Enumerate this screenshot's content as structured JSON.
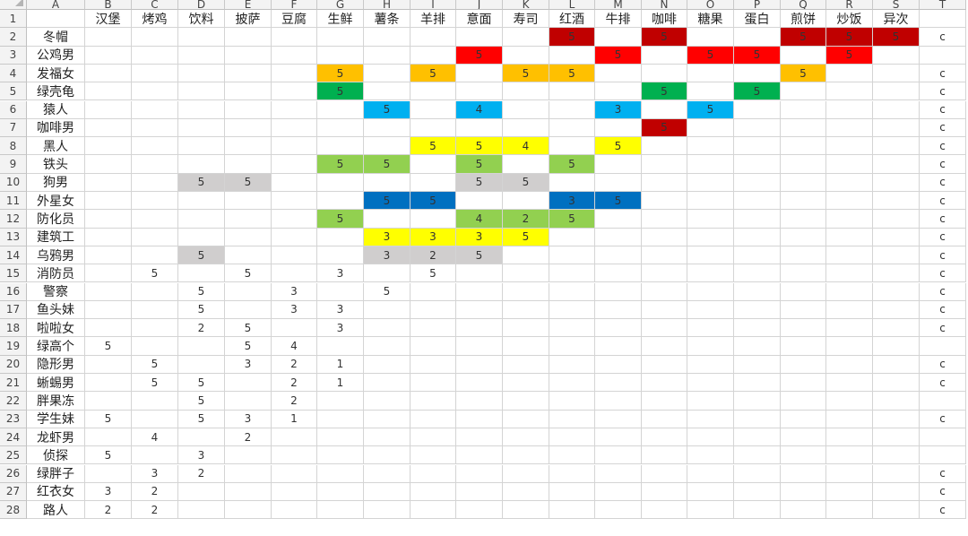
{
  "columns": [
    "A",
    "B",
    "C",
    "D",
    "E",
    "F",
    "G",
    "H",
    "I",
    "J",
    "K",
    "L",
    "M",
    "N",
    "O",
    "P",
    "Q",
    "R",
    "S",
    "T"
  ],
  "header": [
    "",
    "汉堡",
    "烤鸡",
    "饮料",
    "披萨",
    "豆腐",
    "生鲜",
    "薯条",
    "羊排",
    "意面",
    "寿司",
    "红酒",
    "牛排",
    "咖啡",
    "糖果",
    "蛋白",
    "煎饼",
    "炒饭",
    "异次",
    ""
  ],
  "palette": {
    "R": "#c00000",
    "r": "#ff0000",
    "O": "#ffc000",
    "G": "#00b050",
    "B": "#00b0f0",
    "Y": "#ffff00",
    "L": "#92d050",
    "S": "#d0cece",
    "N": "#0070c0"
  },
  "rows": [
    {
      "n": 2,
      "name": "冬帽",
      "values": [
        "",
        "",
        "",
        "",
        "",
        "",
        "",
        "",
        "",
        "",
        "5",
        "",
        "5",
        "",
        "",
        "5",
        "5",
        "5",
        "c"
      ],
      "fills": [
        "",
        "",
        "",
        "",
        "",
        "",
        "",
        "",
        "",
        "",
        "R",
        "",
        "R",
        "",
        "",
        "R",
        "R",
        "R",
        ""
      ]
    },
    {
      "n": 3,
      "name": "公鸡男",
      "values": [
        "",
        "",
        "",
        "",
        "",
        "",
        "",
        "",
        "5",
        "",
        "",
        "5",
        "",
        "5",
        "5",
        "",
        "5",
        "",
        ""
      ],
      "fills": [
        "",
        "",
        "",
        "",
        "",
        "",
        "",
        "",
        "r",
        "",
        "",
        "r",
        "",
        "r",
        "r",
        "",
        "r",
        "",
        ""
      ]
    },
    {
      "n": 4,
      "name": "发福女",
      "values": [
        "",
        "",
        "",
        "",
        "",
        "5",
        "",
        "5",
        "",
        "5",
        "5",
        "",
        "",
        "",
        "",
        "5",
        "",
        "",
        "c"
      ],
      "fills": [
        "",
        "",
        "",
        "",
        "",
        "O",
        "",
        "O",
        "",
        "O",
        "O",
        "",
        "",
        "",
        "",
        "O",
        "",
        "",
        ""
      ]
    },
    {
      "n": 5,
      "name": "绿壳龟",
      "values": [
        "",
        "",
        "",
        "",
        "",
        "5",
        "",
        "",
        "",
        "",
        "",
        "",
        "5",
        "",
        "5",
        "",
        "",
        "",
        "c"
      ],
      "fills": [
        "",
        "",
        "",
        "",
        "",
        "G",
        "",
        "",
        "",
        "",
        "",
        "",
        "G",
        "",
        "G",
        "",
        "",
        "",
        ""
      ]
    },
    {
      "n": 6,
      "name": "猿人",
      "values": [
        "",
        "",
        "",
        "",
        "",
        "",
        "5",
        "",
        "4",
        "",
        "",
        "3",
        "",
        "5",
        "",
        "",
        "",
        "",
        "c"
      ],
      "fills": [
        "",
        "",
        "",
        "",
        "",
        "",
        "B",
        "",
        "B",
        "",
        "",
        "B",
        "",
        "B",
        "",
        "",
        "",
        "",
        ""
      ]
    },
    {
      "n": 7,
      "name": "咖啡男",
      "values": [
        "",
        "",
        "",
        "",
        "",
        "",
        "",
        "",
        "",
        "",
        "",
        "",
        "5",
        "",
        "",
        "",
        "",
        "",
        "c"
      ],
      "fills": [
        "",
        "",
        "",
        "",
        "",
        "",
        "",
        "",
        "",
        "",
        "",
        "",
        "R",
        "",
        "",
        "",
        "",
        "",
        ""
      ]
    },
    {
      "n": 8,
      "name": "黑人",
      "values": [
        "",
        "",
        "",
        "",
        "",
        "",
        "",
        "5",
        "5",
        "4",
        "",
        "5",
        "",
        "",
        "",
        "",
        "",
        "",
        "c"
      ],
      "fills": [
        "",
        "",
        "",
        "",
        "",
        "",
        "",
        "Y",
        "Y",
        "Y",
        "",
        "Y",
        "",
        "",
        "",
        "",
        "",
        "",
        ""
      ]
    },
    {
      "n": 9,
      "name": "铁头",
      "values": [
        "",
        "",
        "",
        "",
        "",
        "5",
        "5",
        "",
        "5",
        "",
        "5",
        "",
        "",
        "",
        "",
        "",
        "",
        "",
        "c"
      ],
      "fills": [
        "",
        "",
        "",
        "",
        "",
        "L",
        "L",
        "",
        "L",
        "",
        "L",
        "",
        "",
        "",
        "",
        "",
        "",
        "",
        ""
      ]
    },
    {
      "n": 10,
      "name": "狗男",
      "values": [
        "",
        "",
        "5",
        "5",
        "",
        "",
        "",
        "",
        "5",
        "5",
        "",
        "",
        "",
        "",
        "",
        "",
        "",
        "",
        "c"
      ],
      "fills": [
        "",
        "",
        "S",
        "S",
        "",
        "",
        "",
        "",
        "S",
        "S",
        "",
        "",
        "",
        "",
        "",
        "",
        "",
        "",
        ""
      ]
    },
    {
      "n": 11,
      "name": "外星女",
      "values": [
        "",
        "",
        "",
        "",
        "",
        "",
        "5",
        "5",
        "",
        "",
        "3",
        "5",
        "",
        "",
        "",
        "",
        "",
        "",
        "c"
      ],
      "fills": [
        "",
        "",
        "",
        "",
        "",
        "",
        "N",
        "N",
        "",
        "",
        "N",
        "N",
        "",
        "",
        "",
        "",
        "",
        "",
        ""
      ]
    },
    {
      "n": 12,
      "name": "防化员",
      "values": [
        "",
        "",
        "",
        "",
        "",
        "5",
        "",
        "",
        "4",
        "2",
        "5",
        "",
        "",
        "",
        "",
        "",
        "",
        "",
        "c"
      ],
      "fills": [
        "",
        "",
        "",
        "",
        "",
        "L",
        "",
        "",
        "L",
        "L",
        "L",
        "",
        "",
        "",
        "",
        "",
        "",
        "",
        ""
      ]
    },
    {
      "n": 13,
      "name": "建筑工",
      "values": [
        "",
        "",
        "",
        "",
        "",
        "",
        "3",
        "3",
        "3",
        "5",
        "",
        "",
        "",
        "",
        "",
        "",
        "",
        "",
        "c"
      ],
      "fills": [
        "",
        "",
        "",
        "",
        "",
        "",
        "Y",
        "Y",
        "Y",
        "Y",
        "",
        "",
        "",
        "",
        "",
        "",
        "",
        "",
        ""
      ]
    },
    {
      "n": 14,
      "name": "乌鸦男",
      "values": [
        "",
        "",
        "5",
        "",
        "",
        "",
        "3",
        "2",
        "5",
        "",
        "",
        "",
        "",
        "",
        "",
        "",
        "",
        "",
        "c"
      ],
      "fills": [
        "",
        "",
        "S",
        "",
        "",
        "",
        "S",
        "S",
        "S",
        "",
        "",
        "",
        "",
        "",
        "",
        "",
        "",
        "",
        ""
      ]
    },
    {
      "n": 15,
      "name": "消防员",
      "values": [
        "",
        "5",
        "",
        "5",
        "",
        "3",
        "",
        "5",
        "",
        "",
        "",
        "",
        "",
        "",
        "",
        "",
        "",
        "",
        "c"
      ],
      "fills": [
        "",
        "",
        "",
        "",
        "",
        "",
        "",
        "",
        "",
        "",
        "",
        "",
        "",
        "",
        "",
        "",
        "",
        "",
        ""
      ]
    },
    {
      "n": 16,
      "name": "警察",
      "values": [
        "",
        "",
        "5",
        "",
        "3",
        "",
        "5",
        "",
        "",
        "",
        "",
        "",
        "",
        "",
        "",
        "",
        "",
        "",
        "c"
      ],
      "fills": [
        "",
        "",
        "",
        "",
        "",
        "",
        "",
        "",
        "",
        "",
        "",
        "",
        "",
        "",
        "",
        "",
        "",
        "",
        ""
      ]
    },
    {
      "n": 17,
      "name": "鱼头妹",
      "values": [
        "",
        "",
        "5",
        "",
        "3",
        "3",
        "",
        "",
        "",
        "",
        "",
        "",
        "",
        "",
        "",
        "",
        "",
        "",
        "c"
      ],
      "fills": [
        "",
        "",
        "",
        "",
        "",
        "",
        "",
        "",
        "",
        "",
        "",
        "",
        "",
        "",
        "",
        "",
        "",
        "",
        ""
      ]
    },
    {
      "n": 18,
      "name": "啦啦女",
      "values": [
        "",
        "",
        "2",
        "5",
        "",
        "3",
        "",
        "",
        "",
        "",
        "",
        "",
        "",
        "",
        "",
        "",
        "",
        "",
        "c"
      ],
      "fills": [
        "",
        "",
        "",
        "",
        "",
        "",
        "",
        "",
        "",
        "",
        "",
        "",
        "",
        "",
        "",
        "",
        "",
        "",
        ""
      ]
    },
    {
      "n": 19,
      "name": "绿高个",
      "values": [
        "5",
        "",
        "",
        "5",
        "4",
        "",
        "",
        "",
        "",
        "",
        "",
        "",
        "",
        "",
        "",
        "",
        "",
        "",
        ""
      ],
      "fills": [
        "",
        "",
        "",
        "",
        "",
        "",
        "",
        "",
        "",
        "",
        "",
        "",
        "",
        "",
        "",
        "",
        "",
        "",
        ""
      ]
    },
    {
      "n": 20,
      "name": "隐形男",
      "values": [
        "",
        "5",
        "",
        "3",
        "2",
        "1",
        "",
        "",
        "",
        "",
        "",
        "",
        "",
        "",
        "",
        "",
        "",
        "",
        "c"
      ],
      "fills": [
        "",
        "",
        "",
        "",
        "",
        "",
        "",
        "",
        "",
        "",
        "",
        "",
        "",
        "",
        "",
        "",
        "",
        "",
        ""
      ]
    },
    {
      "n": 21,
      "name": "蜥蜴男",
      "values": [
        "",
        "5",
        "5",
        "",
        "2",
        "1",
        "",
        "",
        "",
        "",
        "",
        "",
        "",
        "",
        "",
        "",
        "",
        "",
        "c"
      ],
      "fills": [
        "",
        "",
        "",
        "",
        "",
        "",
        "",
        "",
        "",
        "",
        "",
        "",
        "",
        "",
        "",
        "",
        "",
        "",
        ""
      ]
    },
    {
      "n": 22,
      "name": "胖果冻",
      "values": [
        "",
        "",
        "5",
        "",
        "2",
        "",
        "",
        "",
        "",
        "",
        "",
        "",
        "",
        "",
        "",
        "",
        "",
        "",
        ""
      ],
      "fills": [
        "",
        "",
        "",
        "",
        "",
        "",
        "",
        "",
        "",
        "",
        "",
        "",
        "",
        "",
        "",
        "",
        "",
        "",
        ""
      ]
    },
    {
      "n": 23,
      "name": "学生妹",
      "values": [
        "5",
        "",
        "5",
        "3",
        "1",
        "",
        "",
        "",
        "",
        "",
        "",
        "",
        "",
        "",
        "",
        "",
        "",
        "",
        "c"
      ],
      "fills": [
        "",
        "",
        "",
        "",
        "",
        "",
        "",
        "",
        "",
        "",
        "",
        "",
        "",
        "",
        "",
        "",
        "",
        "",
        ""
      ]
    },
    {
      "n": 24,
      "name": "龙虾男",
      "values": [
        "",
        "4",
        "",
        "2",
        "",
        "",
        "",
        "",
        "",
        "",
        "",
        "",
        "",
        "",
        "",
        "",
        "",
        "",
        ""
      ],
      "fills": [
        "",
        "",
        "",
        "",
        "",
        "",
        "",
        "",
        "",
        "",
        "",
        "",
        "",
        "",
        "",
        "",
        "",
        "",
        ""
      ]
    },
    {
      "n": 25,
      "name": "侦探",
      "values": [
        "5",
        "",
        "3",
        "",
        "",
        "",
        "",
        "",
        "",
        "",
        "",
        "",
        "",
        "",
        "",
        "",
        "",
        "",
        ""
      ],
      "fills": [
        "",
        "",
        "",
        "",
        "",
        "",
        "",
        "",
        "",
        "",
        "",
        "",
        "",
        "",
        "",
        "",
        "",
        "",
        ""
      ]
    },
    {
      "n": 26,
      "name": "绿胖子",
      "values": [
        "",
        "3",
        "2",
        "",
        "",
        "",
        "",
        "",
        "",
        "",
        "",
        "",
        "",
        "",
        "",
        "",
        "",
        "",
        "c"
      ],
      "fills": [
        "",
        "",
        "",
        "",
        "",
        "",
        "",
        "",
        "",
        "",
        "",
        "",
        "",
        "",
        "",
        "",
        "",
        "",
        ""
      ]
    },
    {
      "n": 27,
      "name": "红衣女",
      "values": [
        "3",
        "2",
        "",
        "",
        "",
        "",
        "",
        "",
        "",
        "",
        "",
        "",
        "",
        "",
        "",
        "",
        "",
        "",
        "c"
      ],
      "fills": [
        "",
        "",
        "",
        "",
        "",
        "",
        "",
        "",
        "",
        "",
        "",
        "",
        "",
        "",
        "",
        "",
        "",
        "",
        ""
      ]
    },
    {
      "n": 28,
      "name": "路人",
      "values": [
        "2",
        "2",
        "",
        "",
        "",
        "",
        "",
        "",
        "",
        "",
        "",
        "",
        "",
        "",
        "",
        "",
        "",
        "",
        "c"
      ],
      "fills": [
        "",
        "",
        "",
        "",
        "",
        "",
        "",
        "",
        "",
        "",
        "",
        "",
        "",
        "",
        "",
        "",
        "",
        "",
        ""
      ]
    }
  ]
}
